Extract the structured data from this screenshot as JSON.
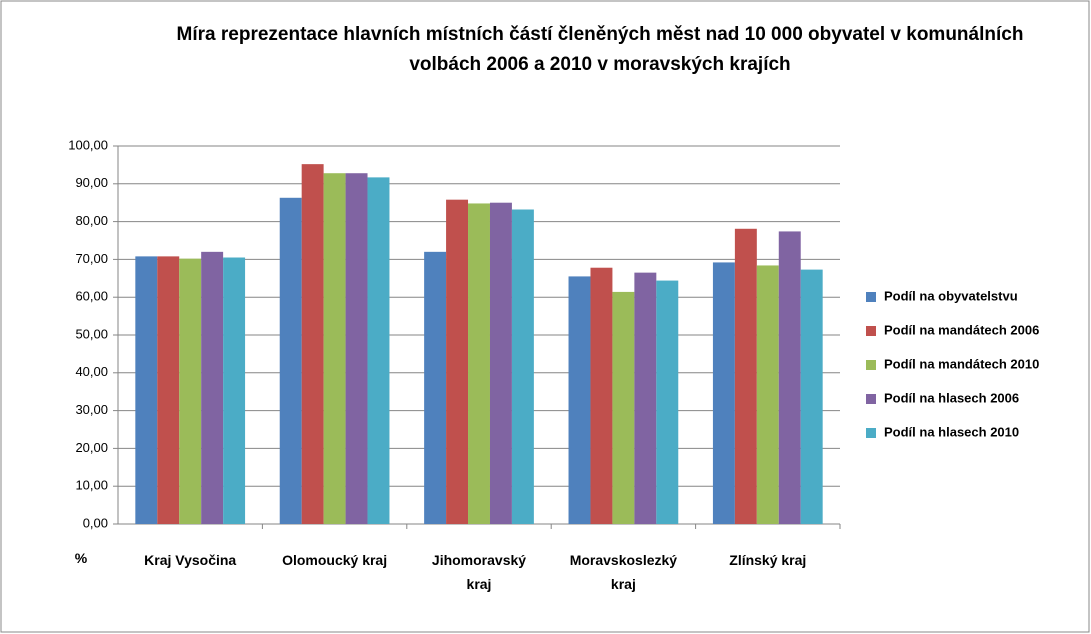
{
  "chart_data": {
    "type": "bar",
    "title": "Míra reprezentace hlavních místních částí členěných měst nad 10 000 obyvatel v komunálních volbách 2006 a 2010 v moravských krajích",
    "unit_label": "%",
    "categories": [
      "Kraj Vysočina",
      "Olomoucký kraj",
      "Jihomoravský kraj",
      "Moravskoslezký kraj",
      "Zlínský kraj"
    ],
    "series": [
      {
        "name": "Podíl na obyvatelstvu",
        "color": "#4f81bd",
        "values": [
          70.8,
          86.3,
          72.0,
          65.5,
          69.2
        ]
      },
      {
        "name": "Podíl na mandátech 2006",
        "color": "#c0504d",
        "values": [
          70.8,
          95.2,
          85.8,
          67.8,
          78.1
        ]
      },
      {
        "name": "Podíl na mandátech 2010",
        "color": "#9bbb59",
        "values": [
          70.2,
          92.8,
          84.8,
          61.4,
          68.4
        ]
      },
      {
        "name": "Podíl na hlasech 2006",
        "color": "#8064a2",
        "values": [
          72.0,
          92.8,
          85.0,
          66.5,
          77.4
        ]
      },
      {
        "name": "Podíl na hlasech 2010",
        "color": "#4bacc6",
        "values": [
          70.5,
          91.7,
          83.2,
          64.4,
          67.3
        ]
      }
    ],
    "ylim": [
      0,
      100
    ],
    "yticks": [
      {
        "value": 0,
        "label": "0,00"
      },
      {
        "value": 10,
        "label": "10,00"
      },
      {
        "value": 20,
        "label": "20,00"
      },
      {
        "value": 30,
        "label": "30,00"
      },
      {
        "value": 40,
        "label": "40,00"
      },
      {
        "value": 50,
        "label": "50,00"
      },
      {
        "value": 60,
        "label": "60,00"
      },
      {
        "value": 70,
        "label": "70,00"
      },
      {
        "value": 80,
        "label": "80,00"
      },
      {
        "value": 90,
        "label": "90,00"
      },
      {
        "value": 100,
        "label": "100,00"
      }
    ],
    "grid": true,
    "legend": "right"
  }
}
